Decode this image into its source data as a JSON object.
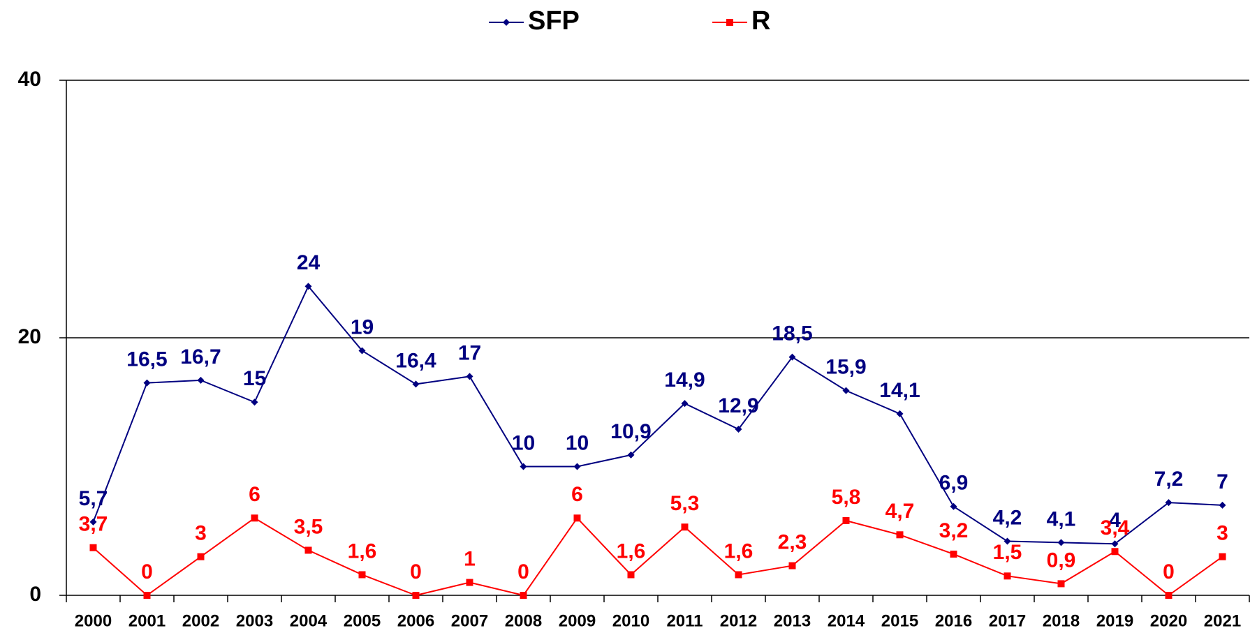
{
  "chart_data": {
    "type": "line",
    "categories": [
      "2000",
      "2001",
      "2002",
      "2003",
      "2004",
      "2005",
      "2006",
      "2007",
      "2008",
      "2009",
      "2010",
      "2011",
      "2012",
      "2013",
      "2014",
      "2015",
      "2016",
      "2017",
      "2018",
      "2019",
      "2020",
      "2021"
    ],
    "series": [
      {
        "name": "SFP",
        "color": "#000080",
        "marker": "diamond",
        "values": [
          5.7,
          16.5,
          16.7,
          15,
          24,
          19,
          16.4,
          17,
          10,
          10,
          10.9,
          14.9,
          12.9,
          18.5,
          15.9,
          14.1,
          6.9,
          4.2,
          4.1,
          4,
          7.2,
          7
        ],
        "value_labels": [
          "5,7",
          "16,5",
          "16,7",
          "15",
          "24",
          "19",
          "16,4",
          "17",
          "10",
          "10",
          "10,9",
          "14,9",
          "12,9",
          "18,5",
          "15,9",
          "14,1",
          "6,9",
          "4,2",
          "4,1",
          "4",
          "7,2",
          "7"
        ]
      },
      {
        "name": "R",
        "color": "#ff0000",
        "marker": "square",
        "values": [
          3.7,
          0,
          3,
          6,
          3.5,
          1.6,
          0,
          1,
          0,
          6,
          1.6,
          5.3,
          1.6,
          2.3,
          5.8,
          4.7,
          3.2,
          1.5,
          0.9,
          3.4,
          0,
          3
        ],
        "value_labels": [
          "3,7",
          "0",
          "3",
          "6",
          "3,5",
          "1,6",
          "0",
          "1",
          "0",
          "6",
          "1,6",
          "5,3",
          "1,6",
          "2,3",
          "5,8",
          "4,7",
          "3,2",
          "1,5",
          "0,9",
          "3,4",
          "0",
          "3"
        ]
      }
    ],
    "ylim": [
      0,
      40
    ],
    "yticks": [
      0,
      20,
      40
    ],
    "grid": true,
    "legend": "top"
  }
}
